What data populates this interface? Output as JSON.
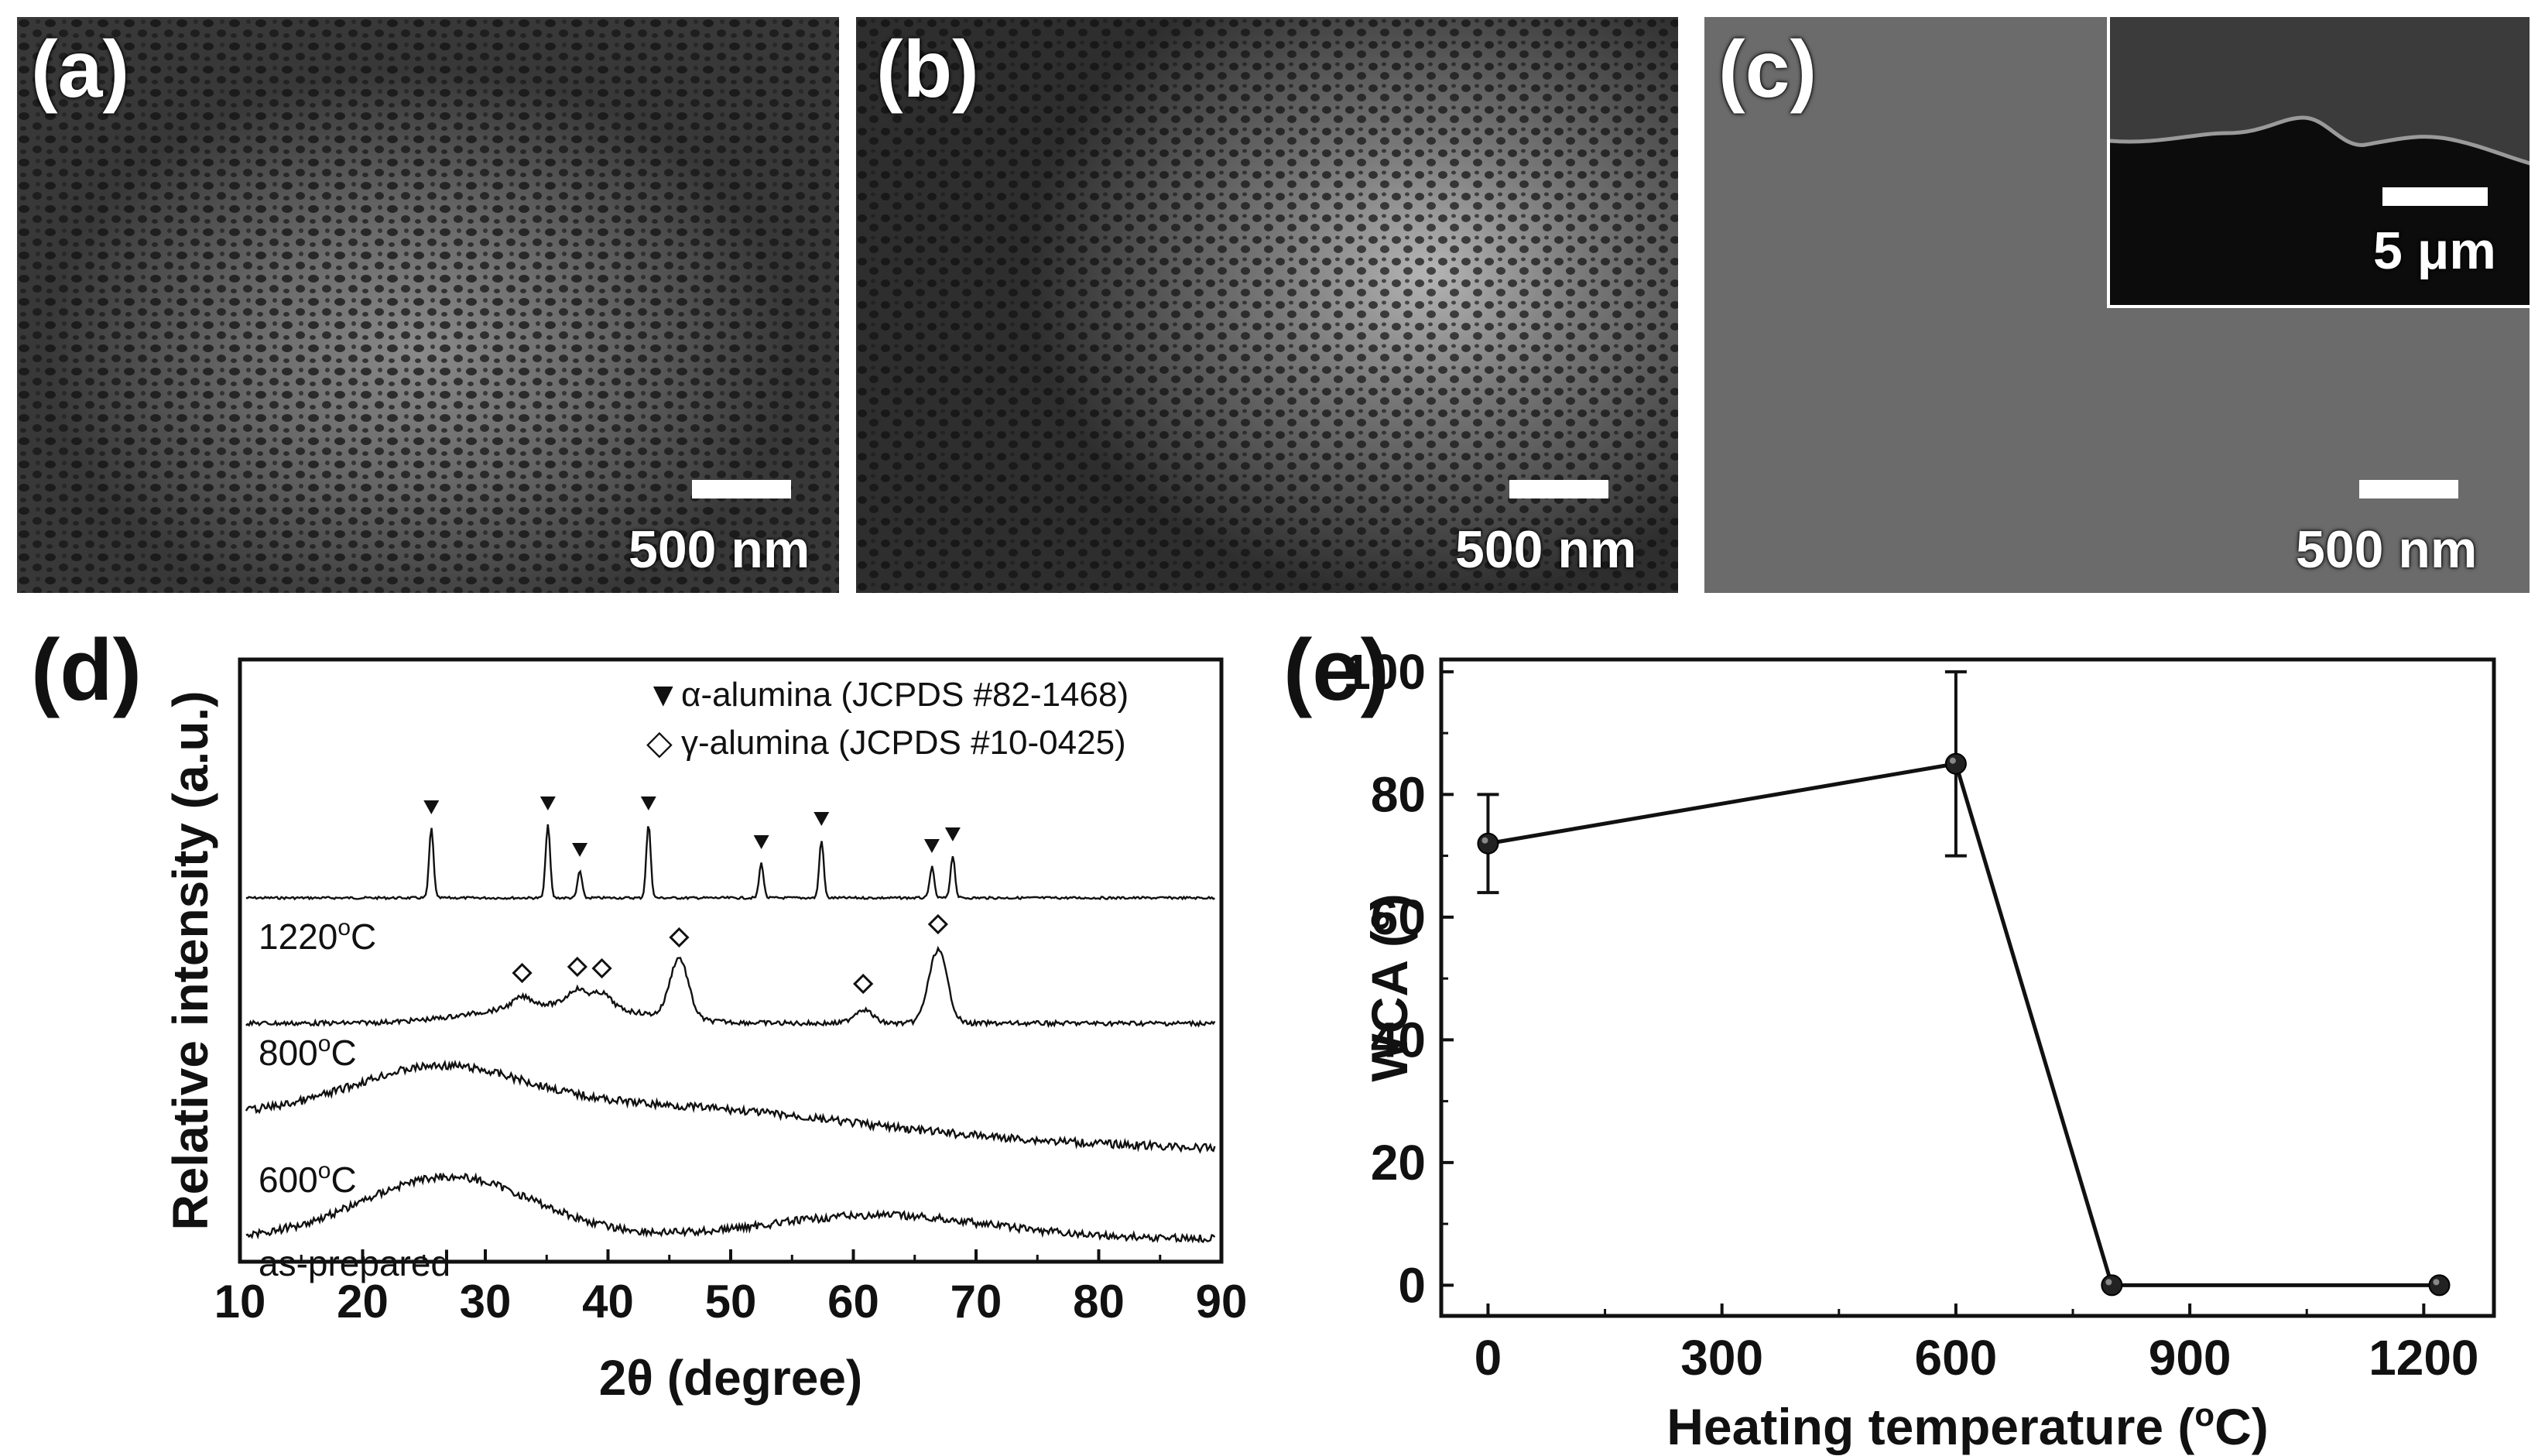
{
  "panel_a": {
    "label": "(a)",
    "scale_bar": "500 nm"
  },
  "panel_b": {
    "label": "(b)",
    "scale_bar": "500 nm"
  },
  "panel_c": {
    "label": "(c)",
    "scale_bar": "500 nm",
    "inset_scale_bar": "5 μm"
  },
  "panel_d": {
    "label": "(d)"
  },
  "panel_e": {
    "label": "(e)"
  },
  "chart_data": [
    {
      "id": "d",
      "type": "line",
      "xlabel": "2θ (degree)",
      "ylabel": "Relative intensity (a.u.)",
      "xlim": [
        10,
        90
      ],
      "xticks": [
        "10",
        "20",
        "30",
        "40",
        "50",
        "60",
        "70",
        "80",
        "90"
      ],
      "legend": [
        {
          "symbol": "▼",
          "text": "α-alumina (JCPDS #82-1468)"
        },
        {
          "symbol": "◇",
          "text": "γ-alumina (JCPDS #10-0425)"
        }
      ],
      "series": [
        {
          "name": "1220oC",
          "display": "1220",
          "unit": "oC",
          "peaks": [
            25.6,
            35.1,
            37.7,
            43.3,
            52.5,
            57.4,
            66.4,
            68.1
          ],
          "marker": "alpha"
        },
        {
          "name": "800oC",
          "display": "800",
          "unit": "oC",
          "peaks": [
            33,
            37.5,
            39.5,
            45.8,
            60.8,
            66.9
          ],
          "marker": "gamma"
        },
        {
          "name": "600oC",
          "display": "600",
          "unit": "oC",
          "peaks": []
        },
        {
          "name": "as-prepared",
          "display": "as-prepared",
          "unit": "",
          "peaks": []
        }
      ]
    },
    {
      "id": "e",
      "type": "line",
      "xlabel": "Heating temperature (oC)",
      "xlabel_parts": [
        "Heating temperature (",
        "o",
        "C)"
      ],
      "ylabel": "WCA (o)",
      "ylabel_parts": [
        "WCA (",
        "o",
        ")"
      ],
      "xlim": [
        -60,
        1290
      ],
      "ylim": [
        -5,
        102
      ],
      "xticks": [
        "0",
        "300",
        "600",
        "900",
        "1200"
      ],
      "yticks": [
        "0",
        "20",
        "40",
        "60",
        "80",
        "100"
      ],
      "x": [
        0,
        600,
        800,
        1220
      ],
      "y": [
        72,
        85,
        0,
        0
      ],
      "yerr": [
        8,
        15,
        0,
        0
      ]
    }
  ]
}
